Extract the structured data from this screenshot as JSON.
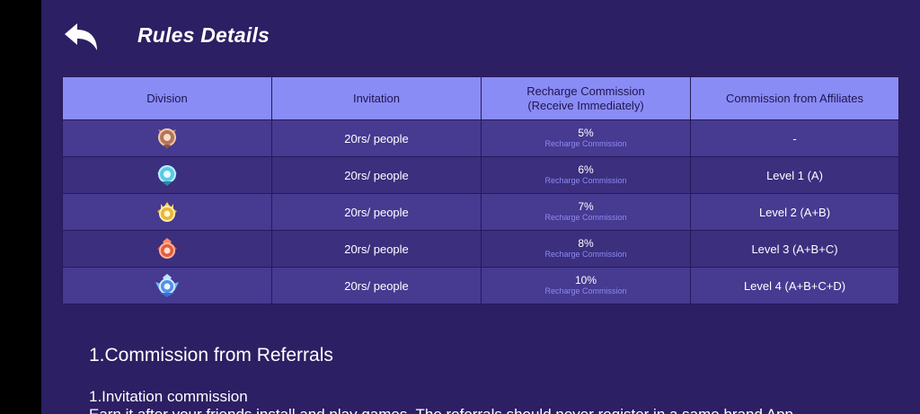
{
  "header": {
    "title": "Rules Details",
    "back_icon": "back-arrow-icon"
  },
  "table": {
    "headers": [
      "Division",
      "Invitation",
      "Recharge Commission\n(Receive Immediately)",
      "Commission from Affiliates"
    ],
    "rows": [
      {
        "badge": "bronze-rank-icon",
        "invitation": "20rs/ people",
        "commission": "5%",
        "commission_note": "Recharge Commission",
        "affiliates": "-"
      },
      {
        "badge": "silver-rank-icon",
        "invitation": "20rs/ people",
        "commission": "6%",
        "commission_note": "Recharge Commission",
        "affiliates": "Level 1 (A)"
      },
      {
        "badge": "gold-rank-icon",
        "invitation": "20rs/ people",
        "commission": "7%",
        "commission_note": "Recharge Commission",
        "affiliates": "Level 2 (A+B)"
      },
      {
        "badge": "ruby-rank-icon",
        "invitation": "20rs/ people",
        "commission": "8%",
        "commission_note": "Recharge Commission",
        "affiliates": "Level 3 (A+B+C)"
      },
      {
        "badge": "diamond-rank-icon",
        "invitation": "20rs/ people",
        "commission": "10%",
        "commission_note": "Recharge Commission",
        "affiliates": "Level 4 (A+B+C+D)"
      }
    ]
  },
  "content": {
    "section_title": "1.Commission from Referrals",
    "sub_title": "1.Invitation commission",
    "body_text": "Earn it after your friends install and play games. The referrals should never register in a same brand App"
  },
  "colors": {
    "background": "#2c1f63",
    "header_row": "#8a8cf5",
    "row_odd": "#463a91",
    "row_even": "#3b2f7e",
    "note_text": "#8d8af0"
  }
}
